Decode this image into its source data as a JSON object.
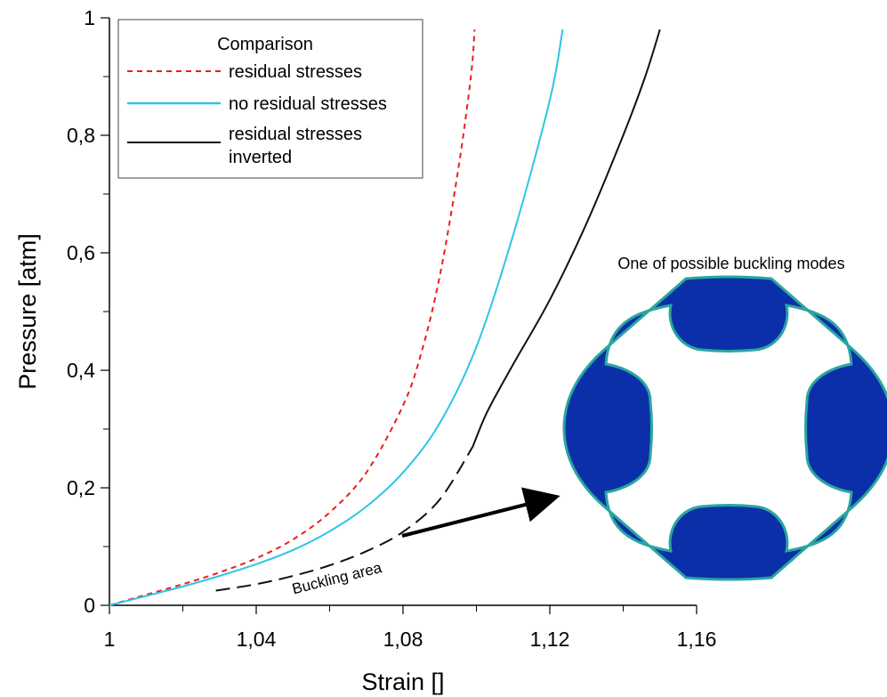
{
  "chart_data": {
    "type": "line",
    "xlabel": "Strain []",
    "ylabel": "Pressure [atm]",
    "xlim": [
      1,
      1.16
    ],
    "ylim": [
      0,
      1
    ],
    "x_ticks": [
      {
        "value": 1,
        "label": "1"
      },
      {
        "value": 1.04,
        "label": "1,04"
      },
      {
        "value": 1.08,
        "label": "1,08"
      },
      {
        "value": 1.12,
        "label": "1,12"
      },
      {
        "value": 1.16,
        "label": "1,16"
      }
    ],
    "y_ticks": [
      {
        "value": 0,
        "label": "0"
      },
      {
        "value": 0.2,
        "label": "0,2"
      },
      {
        "value": 0.4,
        "label": "0,4"
      },
      {
        "value": 0.6,
        "label": "0,6"
      },
      {
        "value": 0.8,
        "label": "0,8"
      },
      {
        "value": 1,
        "label": "1"
      }
    ],
    "grid": false,
    "legend": {
      "title": "Comparison",
      "placement": "top-left",
      "entries": [
        "residual stresses",
        "no residual stresses",
        "residual stresses inverted"
      ]
    },
    "series": [
      {
        "name": "residual stresses",
        "color": "#e8201c",
        "style": "dotted",
        "points": [
          [
            1,
            0
          ],
          [
            1.01,
            0.018
          ],
          [
            1.02,
            0.036
          ],
          [
            1.03,
            0.056
          ],
          [
            1.04,
            0.08
          ],
          [
            1.05,
            0.112
          ],
          [
            1.06,
            0.158
          ],
          [
            1.07,
            0.226
          ],
          [
            1.08,
            0.34
          ],
          [
            1.085,
            0.43
          ],
          [
            1.09,
            0.56
          ],
          [
            1.095,
            0.74
          ],
          [
            1.0985,
            0.9
          ],
          [
            1.0995,
            0.98
          ]
        ]
      },
      {
        "name": "no residual stresses",
        "color": "#2ec4e6",
        "style": "solid",
        "points": [
          [
            1,
            0
          ],
          [
            1.01,
            0.016
          ],
          [
            1.02,
            0.032
          ],
          [
            1.03,
            0.05
          ],
          [
            1.04,
            0.07
          ],
          [
            1.05,
            0.094
          ],
          [
            1.06,
            0.126
          ],
          [
            1.07,
            0.168
          ],
          [
            1.08,
            0.226
          ],
          [
            1.09,
            0.31
          ],
          [
            1.1,
            0.44
          ],
          [
            1.11,
            0.63
          ],
          [
            1.12,
            0.86
          ],
          [
            1.1235,
            0.98
          ]
        ]
      },
      {
        "name": "residual stresses inverted",
        "color": "#111111",
        "style": "solid",
        "segments": [
          {
            "style": "dashed",
            "points": [
              [
                1.029,
                0.025
              ],
              [
                1.04,
                0.036
              ],
              [
                1.05,
                0.05
              ],
              [
                1.06,
                0.068
              ],
              [
                1.07,
                0.092
              ],
              [
                1.08,
                0.125
              ],
              [
                1.09,
                0.18
              ],
              [
                1.099,
                0.27
              ]
            ]
          },
          {
            "style": "solid",
            "points": [
              [
                1.099,
                0.27
              ],
              [
                1.103,
                0.33
              ],
              [
                1.11,
                0.41
              ],
              [
                1.12,
                0.52
              ],
              [
                1.13,
                0.65
              ],
              [
                1.14,
                0.8
              ],
              [
                1.146,
                0.9
              ],
              [
                1.15,
                0.98
              ]
            ]
          }
        ]
      }
    ],
    "annotations": [
      {
        "text": "Buckling area",
        "arrow": true,
        "color": "#000000"
      },
      {
        "text": "One of possible buckling modes",
        "color": "#000000"
      }
    ],
    "inset_image": {
      "subject": "buckled ring cross-section",
      "fill_color": "#0a2fa8",
      "edge_color": "#2aa6a0"
    }
  }
}
